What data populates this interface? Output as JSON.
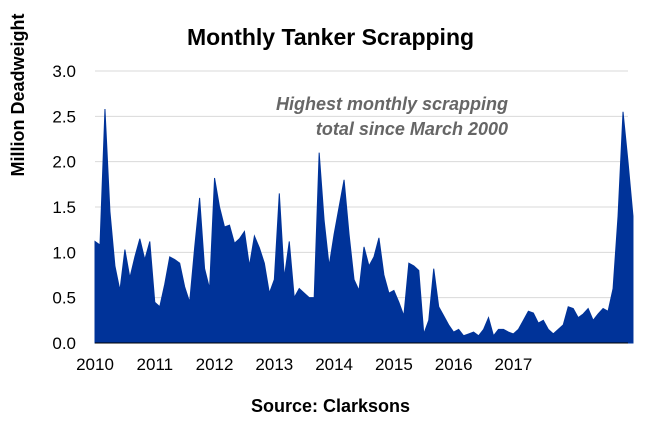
{
  "chart_data": {
    "type": "area",
    "title": "Monthly Tanker Scrapping",
    "ylabel": "Million Deadweight",
    "xlabel": "",
    "source": "Source: Clarksons",
    "annotation": [
      "Highest monthly scrapping",
      "total since March 2000"
    ],
    "ylim": [
      0,
      3
    ],
    "yticks": [
      "0.0",
      "0.5",
      "1.0",
      "1.5",
      "2.0",
      "2.5",
      "3.0"
    ],
    "xticks": [
      "2010",
      "2011",
      "2012",
      "2013",
      "2014",
      "2015",
      "2016",
      "2017"
    ],
    "x_start_year": 2010,
    "grid": true,
    "series": [
      {
        "color": "#003399",
        "values": [
          1.12,
          1.08,
          2.58,
          1.45,
          0.85,
          0.58,
          1.03,
          0.72,
          0.95,
          1.15,
          0.92,
          1.12,
          0.45,
          0.4,
          0.65,
          0.95,
          0.92,
          0.88,
          0.62,
          0.45,
          1.05,
          1.6,
          0.82,
          0.6,
          1.82,
          1.5,
          1.28,
          1.3,
          1.1,
          1.15,
          1.23,
          0.85,
          1.18,
          1.05,
          0.88,
          0.55,
          0.7,
          1.65,
          0.72,
          1.12,
          0.5,
          0.6,
          0.55,
          0.5,
          0.5,
          2.1,
          1.35,
          0.85,
          1.2,
          1.5,
          1.8,
          1.2,
          0.7,
          0.58,
          1.06,
          0.85,
          0.95,
          1.16,
          0.75,
          0.55,
          0.58,
          0.45,
          0.3,
          0.88,
          0.85,
          0.8,
          0.1,
          0.25,
          0.82,
          0.4,
          0.3,
          0.2,
          0.12,
          0.15,
          0.08,
          0.1,
          0.12,
          0.08,
          0.15,
          0.28,
          0.08,
          0.15,
          0.15,
          0.12,
          0.1,
          0.15,
          0.25,
          0.35,
          0.33,
          0.22,
          0.25,
          0.15,
          0.1,
          0.15,
          0.2,
          0.4,
          0.38,
          0.28,
          0.32,
          0.38,
          0.25,
          0.32,
          0.38,
          0.35,
          0.6,
          1.4,
          2.55,
          2.0,
          1.4
        ]
      }
    ]
  }
}
